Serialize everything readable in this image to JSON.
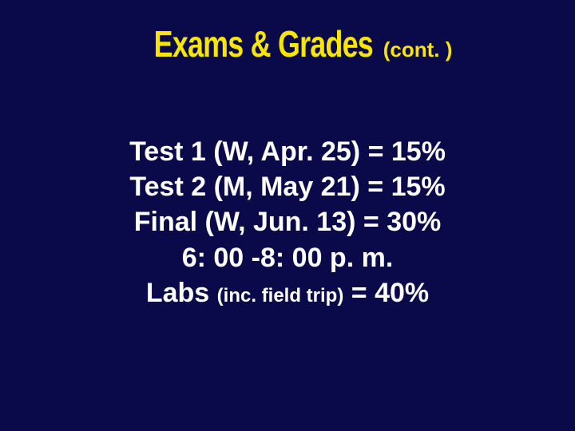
{
  "colors": {
    "background": "#0a0a4a",
    "title": "#f7e600",
    "body": "#ffffff"
  },
  "fonts": {
    "title_main_size": 46,
    "title_cont_size": 26,
    "body_size": 34,
    "body_small_size": 24
  },
  "title": {
    "main": "Exams & Grades",
    "cont": "(cont. )"
  },
  "lines": {
    "l1": "Test 1 (W, Apr. 25) = 15%",
    "l2": "Test 2 (M, May 21) = 15%",
    "l3": "Final (W, Jun. 13) = 30%",
    "l4": "6: 00 -8: 00 p. m.",
    "l5a": "Labs ",
    "l5b": "(inc. field trip)",
    "l5c": " = 40%"
  }
}
